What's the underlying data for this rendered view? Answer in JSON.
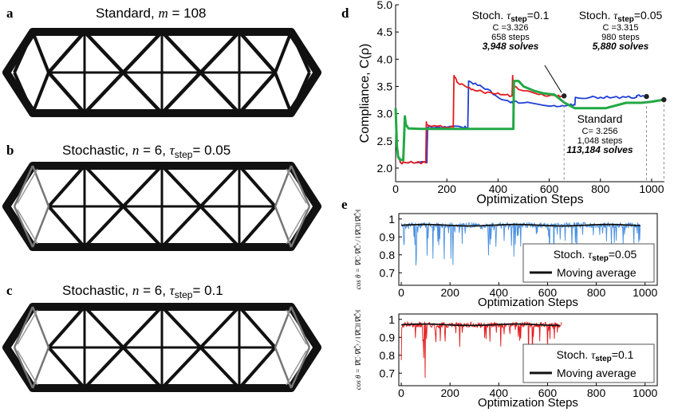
{
  "panels": {
    "a": {
      "letter": "a",
      "title": "Standard, m = 108"
    },
    "b": {
      "letter": "b",
      "title": "Stochastic, n = 6, τ",
      "sub": "step",
      "tail": "= 0.05"
    },
    "c": {
      "letter": "c",
      "title": "Stochastic, n = 6, τ",
      "sub": "step",
      "tail": "= 0.1"
    }
  },
  "colors": {
    "red": "#e41a1c",
    "blue": "#1f3fd6",
    "green": "#22a844",
    "lightblue": "#4a90e0",
    "black": "#111111",
    "gray": "#888888"
  },
  "chart_data": [
    {
      "panel": "d",
      "type": "line",
      "xlabel": "Optimization Steps",
      "ylabel": "Compliance, C(ρ)",
      "xlim": [
        0,
        1050
      ],
      "ylim": [
        1.75,
        5.0
      ],
      "xticks": [
        "0",
        "200",
        "400",
        "600",
        "800",
        "1000"
      ],
      "yticks": [
        "2.0",
        "2.5",
        "3.0",
        "3.5",
        "4.0",
        "4.5",
        "5.0"
      ],
      "series": [
        {
          "color": "red",
          "x": [
            0,
            5,
            12,
            20,
            40,
            80,
            118,
            120,
            122,
            150,
            200,
            225,
            228,
            240,
            280,
            300,
            340,
            380,
            420,
            455,
            457,
            460,
            500,
            560,
            600,
            630,
            655,
            658
          ],
          "y": [
            3.1,
            2.4,
            2.2,
            2.1,
            2.1,
            2.1,
            2.1,
            2.85,
            2.8,
            2.78,
            2.75,
            2.75,
            3.7,
            3.58,
            3.48,
            3.45,
            3.4,
            3.37,
            3.35,
            3.33,
            3.7,
            3.5,
            3.42,
            3.35,
            3.33,
            3.32,
            3.33,
            3.326
          ]
        },
        {
          "color": "blue",
          "x": [
            0,
            5,
            12,
            20,
            40,
            80,
            122,
            125,
            160,
            200,
            260,
            282,
            285,
            320,
            360,
            400,
            450,
            460,
            500,
            560,
            620,
            650,
            680,
            700,
            702,
            760,
            800,
            850,
            900,
            940,
            942,
            960,
            980
          ],
          "y": [
            3.1,
            2.4,
            2.2,
            2.1,
            2.1,
            2.1,
            2.1,
            2.75,
            2.75,
            2.75,
            2.75,
            2.75,
            3.6,
            3.52,
            3.45,
            3.3,
            3.2,
            3.22,
            3.2,
            3.17,
            3.15,
            3.15,
            3.16,
            3.16,
            3.3,
            3.3,
            3.3,
            3.3,
            3.3,
            3.3,
            3.33,
            3.32,
            3.315
          ]
        },
        {
          "color": "green",
          "x": [
            0,
            5,
            10,
            20,
            30,
            36,
            40,
            50,
            100,
            200,
            300,
            400,
            460,
            462,
            480,
            500,
            540,
            580,
            620,
            660,
            700,
            740,
            780,
            820,
            900,
            960,
            1000,
            1040,
            1048
          ],
          "y": [
            3.1,
            2.4,
            2.2,
            2.15,
            2.15,
            2.95,
            2.8,
            2.73,
            2.72,
            2.72,
            2.72,
            2.72,
            2.72,
            3.6,
            3.6,
            3.5,
            3.42,
            3.37,
            3.35,
            3.2,
            3.1,
            3.1,
            3.1,
            3.1,
            3.2,
            3.2,
            3.22,
            3.25,
            3.256
          ]
        }
      ],
      "annotations": [
        {
          "label": "Stoch. τstep=0.1",
          "lines": [
            "C =3.326",
            "658 steps",
            "3,948 solves"
          ],
          "x": 658,
          "y": 3.326
        },
        {
          "label": "Stoch. τstep=0.05",
          "lines": [
            "C =3.315",
            "980 steps",
            "5,880 solves"
          ],
          "x": 980,
          "y": 3.315
        },
        {
          "label": "Standard",
          "lines": [
            "C= 3.256",
            "1,048 steps",
            "113,184 solves"
          ],
          "x": 1048,
          "y": 3.256
        }
      ]
    },
    {
      "panel": "e-top",
      "type": "line",
      "xlabel": "Optimization Steps",
      "ylabel": "cos θ = ∇C · ∇Ĉ^s / (‖∇C‖‖∇Ĉ^s‖)",
      "xlim": [
        -10,
        1050
      ],
      "ylim": [
        0.63,
        1.03
      ],
      "xticks": [
        "0",
        "200",
        "400",
        "600",
        "800",
        "1000"
      ],
      "yticks": [
        "0.7",
        "0.8",
        "0.9",
        "1"
      ],
      "series": [
        {
          "name": "Stoch. τstep=0.05",
          "color": "lightblue",
          "n_steps": 980,
          "mean": 0.965
        },
        {
          "name": "Moving average",
          "color": "black",
          "n_steps": 980,
          "mean": 0.965
        }
      ],
      "legend": "bottom-right"
    },
    {
      "panel": "e-bottom",
      "type": "line",
      "xlabel": "Optimization Steps",
      "ylabel": "cos θ = ∇C · ∇Ĉ^s / (‖∇C‖‖∇Ĉ^s‖)",
      "xlim": [
        -10,
        1050
      ],
      "ylim": [
        0.63,
        1.03
      ],
      "xticks": [
        "0",
        "200",
        "400",
        "600",
        "800",
        "1000"
      ],
      "yticks": [
        "0.7",
        "0.8",
        "0.9",
        "1"
      ],
      "series": [
        {
          "name": "Stoch. τstep=0.1",
          "color": "red",
          "n_steps": 658,
          "mean": 0.97
        },
        {
          "name": "Moving average",
          "color": "black",
          "n_steps": 658,
          "mean": 0.97
        }
      ],
      "legend": "bottom-right"
    }
  ],
  "labels": {
    "d": "d",
    "e": "e"
  }
}
